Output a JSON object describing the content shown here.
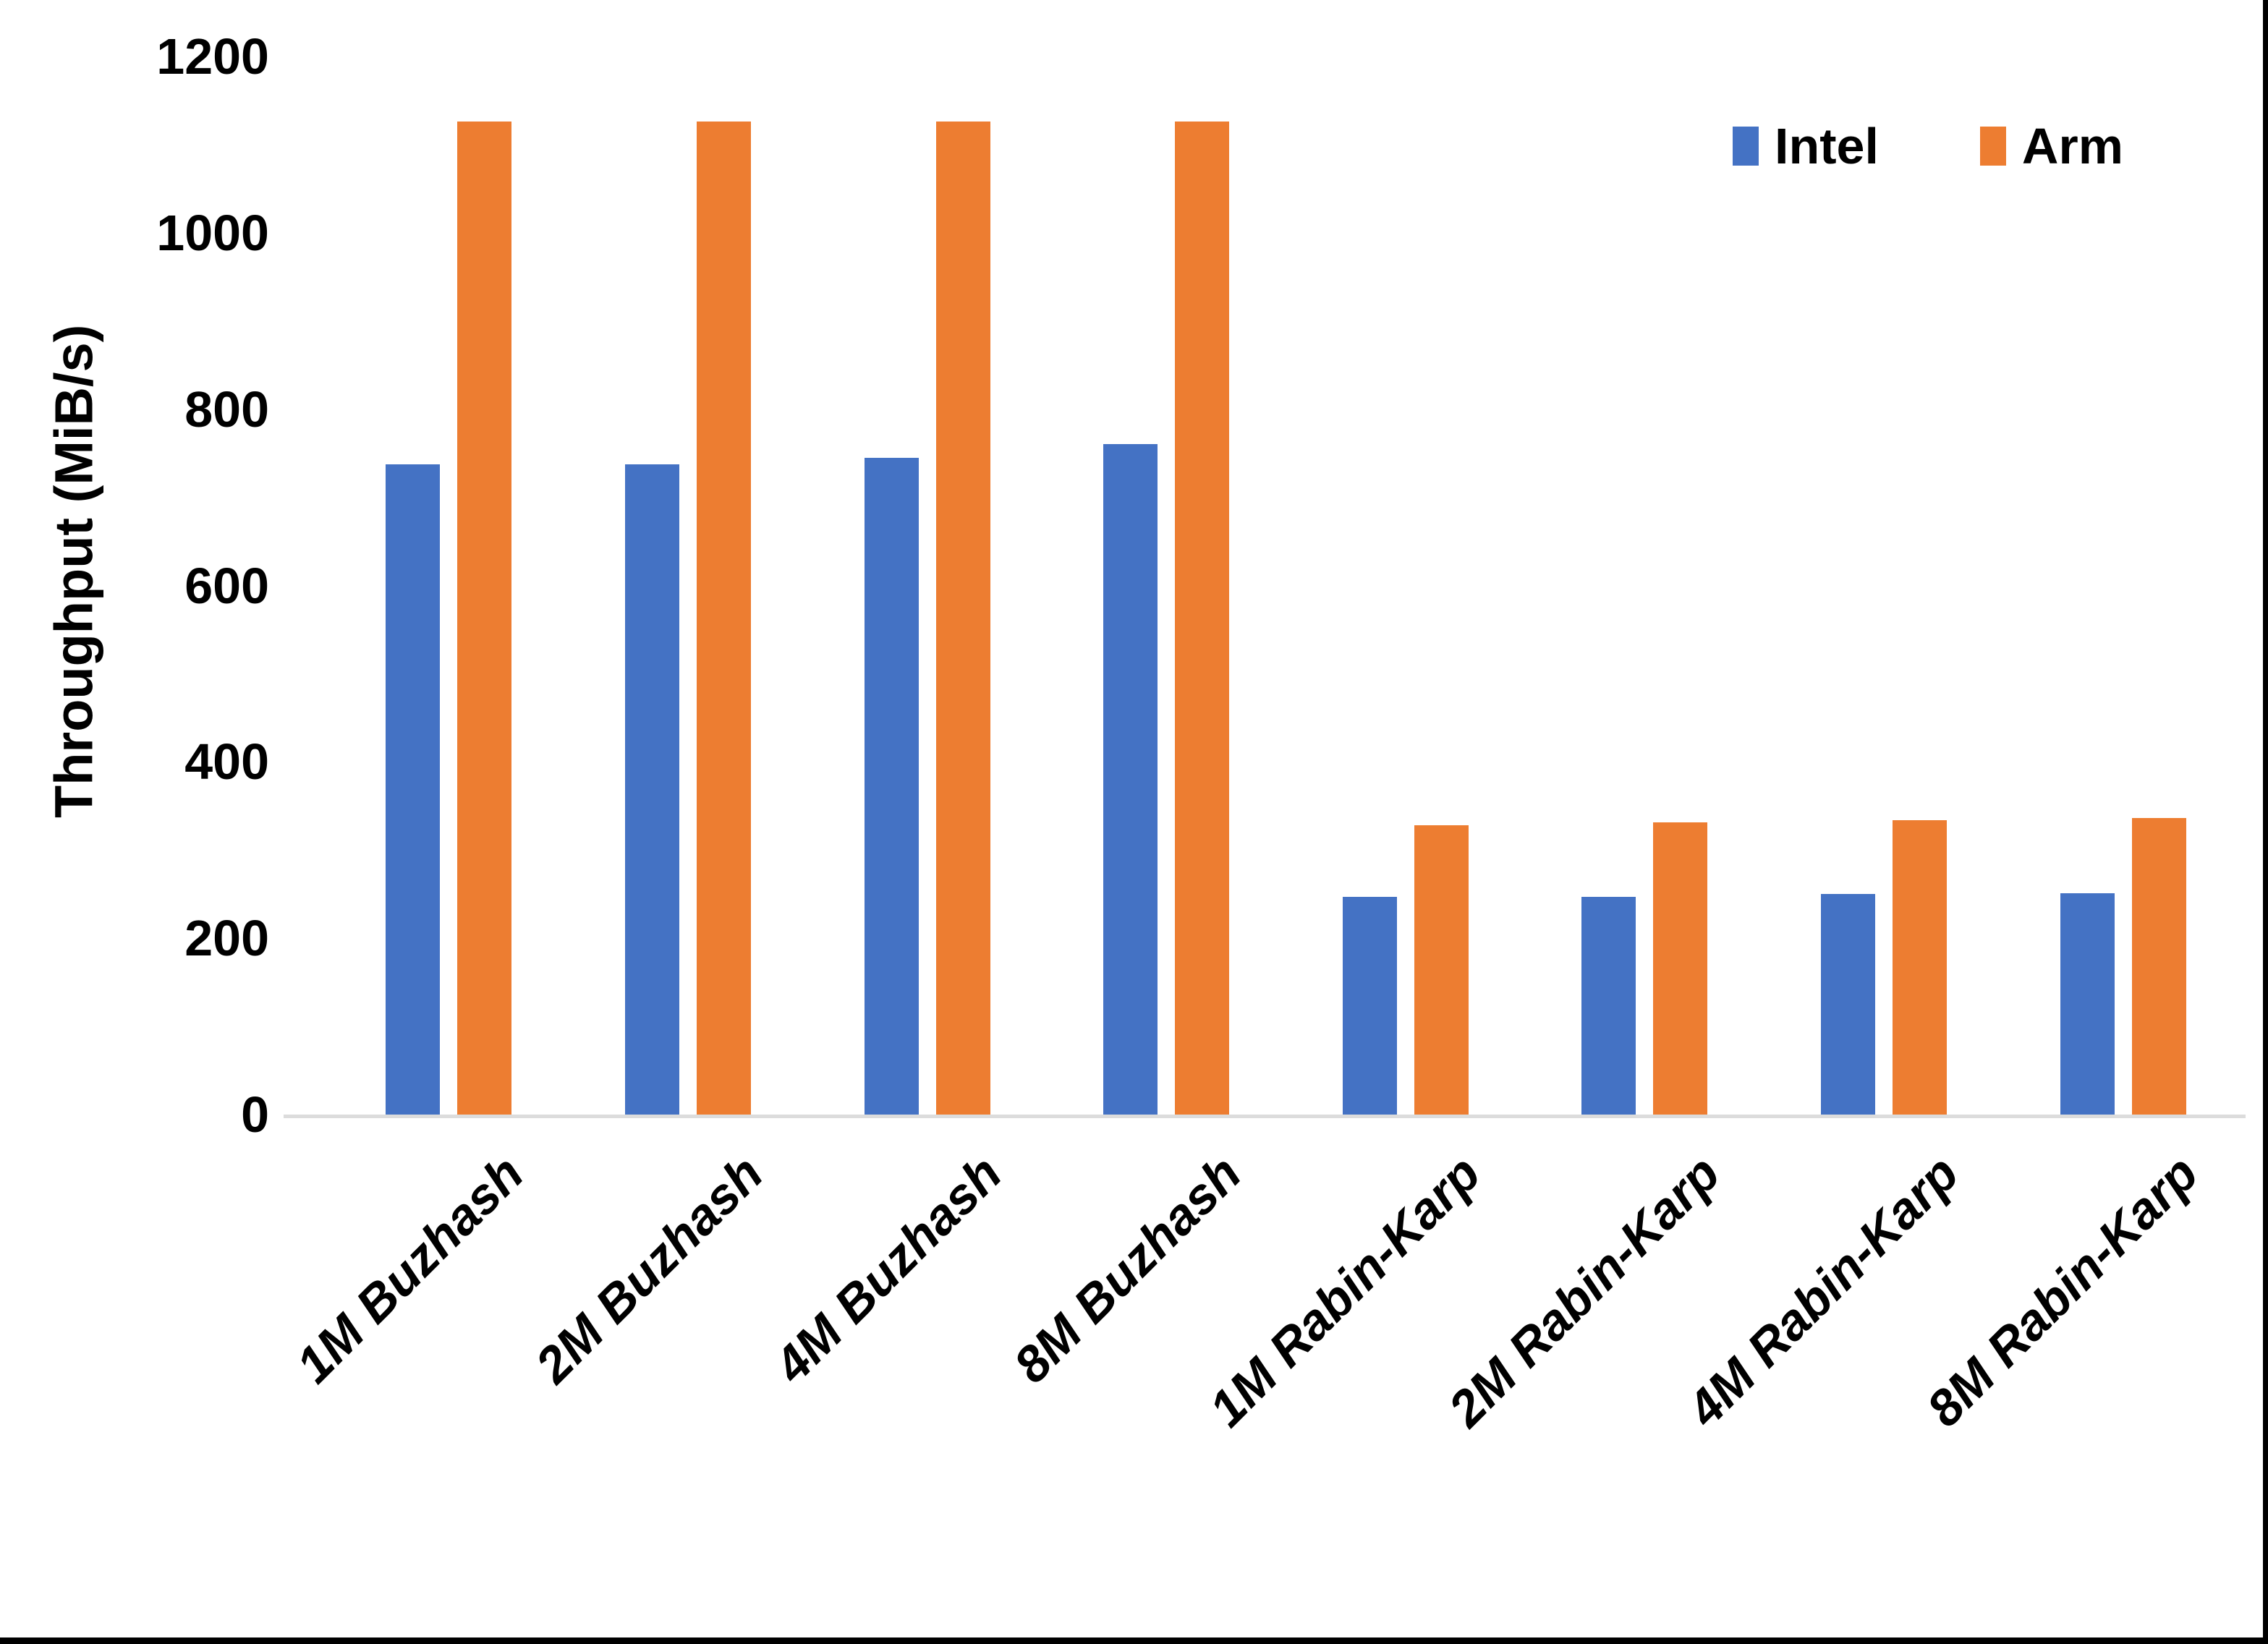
{
  "window": {
    "background_color": "#FFFFFF",
    "edge_color": "#000000"
  },
  "chart_data": {
    "type": "bar",
    "title": "",
    "xlabel": "",
    "ylabel": "Throughput (MiB/s)",
    "ylim": [
      0,
      1200
    ],
    "yticks": [
      0,
      200,
      400,
      600,
      800,
      1000,
      1200
    ],
    "grid": false,
    "legend_position": "top-right",
    "axis_line_color": "#DCDCDC",
    "categories": [
      "1M Buzhash",
      "2M Buzhash",
      "4M Buzhash",
      "8M Buzhash",
      "1M Rabin-Karp",
      "2M Rabin-Karp",
      "4M Rabin-Karp",
      "8M Rabin-Karp"
    ],
    "series": [
      {
        "name": "Intel",
        "color": "#4472C4",
        "values": [
          737,
          737,
          745,
          760,
          247,
          247,
          250,
          251
        ]
      },
      {
        "name": "Arm",
        "color": "#ED7D31",
        "values": [
          1126,
          1126,
          1126,
          1126,
          328,
          331,
          334,
          336
        ]
      }
    ]
  }
}
